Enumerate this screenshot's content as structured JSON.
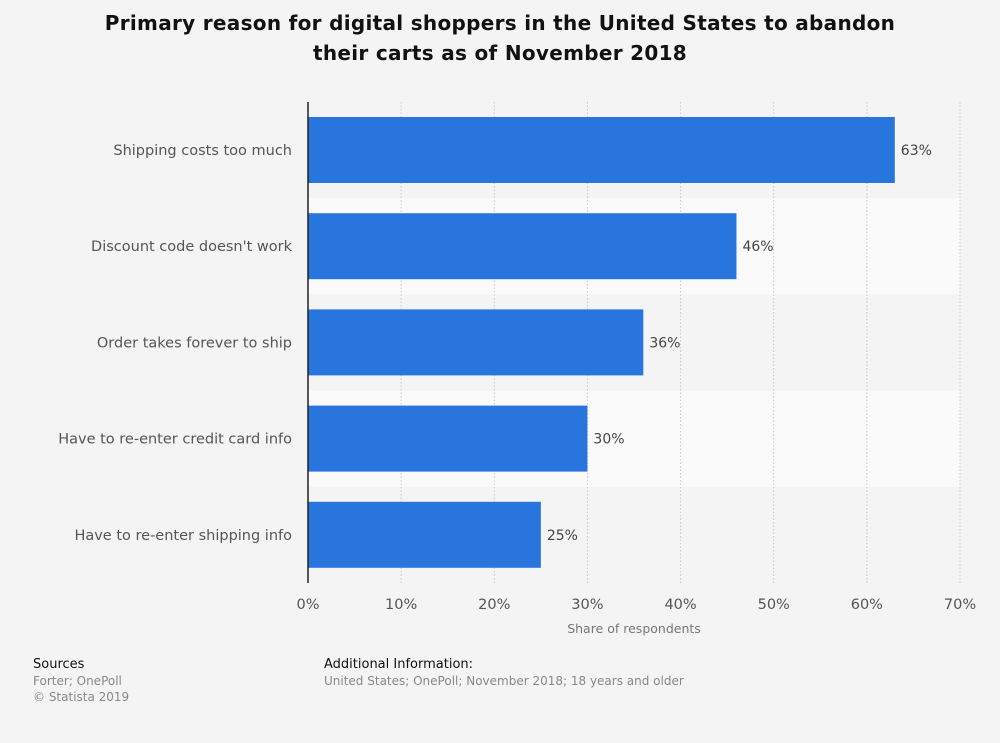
{
  "chart_data": {
    "type": "bar",
    "orientation": "horizontal",
    "title": "Primary reason for digital shoppers in the United States to abandon their carts as of November 2018",
    "categories": [
      "Shipping costs too much",
      "Discount code doesn't work",
      "Order takes forever to ship",
      "Have to re-enter credit card info",
      "Have to re-enter shipping info"
    ],
    "values": [
      63,
      46,
      36,
      30,
      25
    ],
    "data_labels": [
      "63%",
      "46%",
      "36%",
      "30%",
      "25%"
    ],
    "xlabel": "Share of respondents",
    "ylabel": "",
    "xlim": [
      0,
      70
    ],
    "xticks": [
      "0%",
      "10%",
      "20%",
      "30%",
      "40%",
      "50%",
      "60%",
      "70%"
    ],
    "grid": true,
    "bar_color": "#2876dd"
  },
  "footer": {
    "sources_heading": "Sources",
    "sources": "Forter; OnePoll",
    "copyright": "© Statista 2019",
    "additional_heading": "Additional Information:",
    "additional": "United States; OnePoll; November 2018; 18 years and older"
  }
}
